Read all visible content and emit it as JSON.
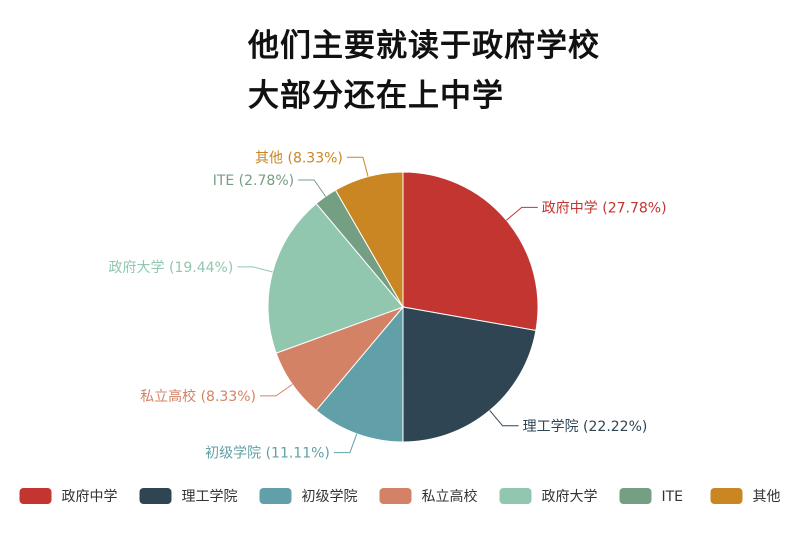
{
  "title_lines": [
    "他们主要就读于政府学校",
    "大部分还在上中学"
  ],
  "chart_data": {
    "type": "pie",
    "start_angle_deg": 0,
    "direction": "clockwise",
    "legend_position": "bottom",
    "slices": [
      {
        "label": "政府中学",
        "value": 27.78,
        "pct_text": "(27.78%)",
        "color": "#c23531"
      },
      {
        "label": "理工学院",
        "value": 22.22,
        "pct_text": "(22.22%)",
        "color": "#2f4554"
      },
      {
        "label": "初级学院",
        "value": 11.11,
        "pct_text": "(11.11%)",
        "color": "#61a0a8"
      },
      {
        "label": "私立高校",
        "value": 8.33,
        "pct_text": "(8.33%)",
        "color": "#d48265"
      },
      {
        "label": "政府大学",
        "value": 19.44,
        "pct_text": "(19.44%)",
        "color": "#91c7ae"
      },
      {
        "label": "ITE",
        "value": 2.78,
        "pct_text": "(2.78%)",
        "color": "#749f83"
      },
      {
        "label": "其他",
        "value": 8.33,
        "pct_text": "(8.33%)",
        "color": "#ca8622"
      }
    ]
  }
}
